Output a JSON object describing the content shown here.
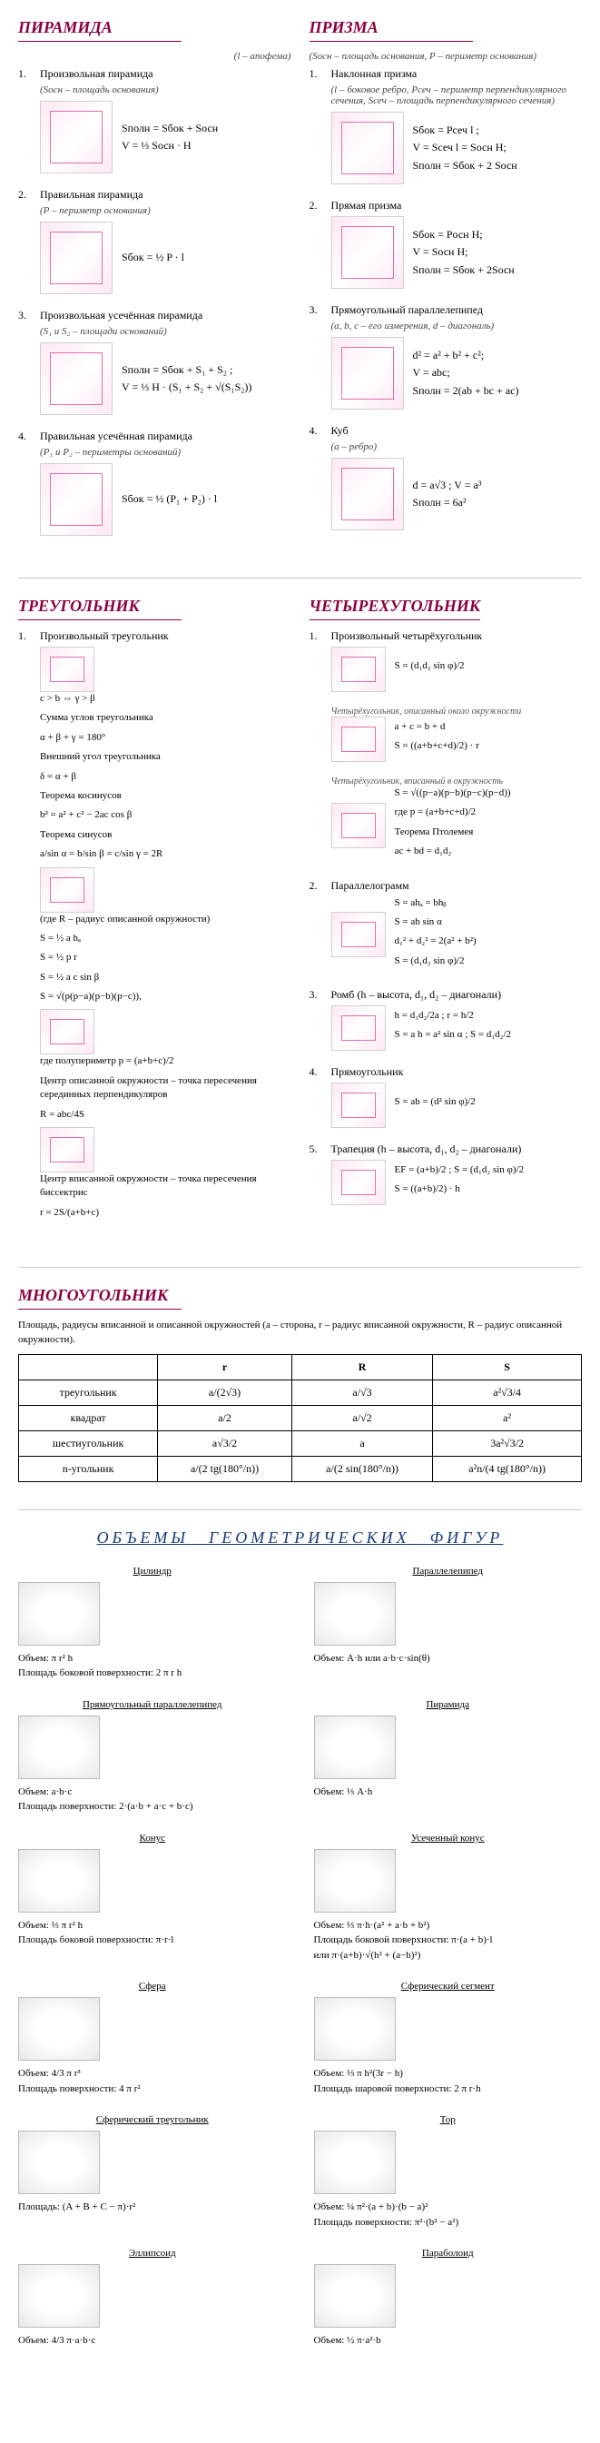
{
  "colors": {
    "accent": "#8b0040",
    "figure_stroke": "#d63384",
    "vol_title": "#1a3a7a",
    "text": "#000000",
    "note": "#444444",
    "bg": "#ffffff"
  },
  "typography": {
    "base_family": "Times New Roman, serif",
    "base_size_pt": 12,
    "title_size_pt": 18,
    "note_size_pt": 11
  },
  "sections": {
    "pyramid": {
      "title": "ПИРАМИДА",
      "apothem_note": "(l – апофема)",
      "items": [
        {
          "num": "1.",
          "title": "Произвольная пирамида",
          "note": "(Sосн – площадь основания)",
          "formulas": [
            "Sполн = Sбок + Sосн",
            "V = ⅓ Sосн · H"
          ]
        },
        {
          "num": "2.",
          "title": "Правильная пирамида",
          "note": "(P – периметр основания)",
          "formulas": [
            "Sбок = ½ P · l"
          ]
        },
        {
          "num": "3.",
          "title": "Произвольная усечённая пирамида",
          "note": "(S₁ и S₂ – площади оснований)",
          "formulas": [
            "Sполн = Sбок + S₁ + S₂ ;",
            "V = ⅓ H · (S₁ + S₂ + √(S₁S₂))"
          ]
        },
        {
          "num": "4.",
          "title": "Правильная усечённая пирамида",
          "note": "(P₁ и P₂ – периметры оснований)",
          "formulas": [
            "Sбок = ½ (P₁ + P₂) · l"
          ]
        }
      ]
    },
    "prism": {
      "title": "ПРИЗМА",
      "note": "(Sосн – площадь основания, P – периметр основания)",
      "items": [
        {
          "num": "1.",
          "title": "Наклонная призма",
          "note": "(l – боковое ребро, Pсеч – периметр перпендикулярного сечения, Sсеч – площадь перпендикулярного сечения)",
          "formulas": [
            "Sбок = Pсеч l ;",
            "V = Sсеч l = Sосн H;",
            "Sполн = Sбок + 2 Sосн"
          ]
        },
        {
          "num": "2.",
          "title": "Прямая призма",
          "note": "",
          "formulas": [
            "Sбок = Pосн H;",
            "V = Sосн H;",
            "Sполн = Sбок + 2Sосн"
          ]
        },
        {
          "num": "3.",
          "title": "Прямоугольный параллелепипед",
          "note": "(a, b, c – его измерения, d – диагональ)",
          "formulas": [
            "d² = a² + b² + c²;",
            "V = abc;",
            "Sполн = 2(ab + bc + ac)"
          ]
        },
        {
          "num": "4.",
          "title": "Куб",
          "note": "(a – ребро)",
          "formulas": [
            "d = a√3 ;  V = a³",
            "Sполн = 6a²"
          ]
        }
      ]
    },
    "triangle": {
      "title": "ТРЕУГОЛЬНИК",
      "items": [
        {
          "num": "1.",
          "title": "Произвольный треугольник",
          "lines": [
            "c > b ⇔ γ > β",
            "Сумма углов треугольника",
            "α + β + γ = 180°",
            "Внешний угол треугольника",
            "δ = α + β",
            "Теорема косинусов",
            "b² = a² + c² − 2ac cos β",
            "Теорема синусов",
            "a/sin α = b/sin β = c/sin γ = 2R",
            "(где R – радиус описанной окружности)",
            "S = ½ a hₐ",
            "S = ½ p r",
            "S = ½ a c sin β",
            "S = √(p(p−a)(p−b)(p−c)),",
            "где полупериметр p = (a+b+c)/2",
            "Центр описанной окружности – точка пересечения серединных перпендикуляров",
            "R = abc/4S",
            "Центр вписанной окружности – точка пересечения биссектрис",
            "r = 2S/(a+b+c)"
          ]
        }
      ]
    },
    "quad": {
      "title": "ЧЕТЫРЕХУГОЛЬНИК",
      "items": [
        {
          "num": "1.",
          "title": "Произвольный четырёхугольник",
          "lines": [
            "S = (d₁d₂ sin φ)/2"
          ]
        },
        {
          "title2": "Четырёхугольник, описанный около окружности",
          "lines": [
            "a + c = b + d",
            "S = ((a+b+c+d)/2) · r"
          ]
        },
        {
          "title2": "Четырёхугольник, вписанный в окружность",
          "lines": [
            "S = √((p−a)(p−b)(p−c)(p−d))",
            "где p = (a+b+c+d)/2",
            "Теорема Птолемея",
            "ac + bd = d₁d₂"
          ]
        },
        {
          "num": "2.",
          "title": "Параллелограмм",
          "lines": [
            "S = ahₐ = bhᵦ",
            "S = ab sin α",
            "d₁² + d₂² = 2(a² + b²)",
            "S = (d₁d₂ sin φ)/2"
          ]
        },
        {
          "num": "3.",
          "title": "Ромб (h – высота, d₁, d₂ – диагонали)",
          "lines": [
            "h = d₁d₂/2a ;  r = h/2",
            "S = a h = a² sin α ;  S = d₁d₂/2"
          ]
        },
        {
          "num": "4.",
          "title": "Прямоугольник",
          "lines": [
            "S = ab = (d² sin φ)/2"
          ]
        },
        {
          "num": "5.",
          "title": "Трапеция (h – высота, d₁, d₂ – диагонали)",
          "lines": [
            "EF = (a+b)/2 ;  S = (d₁d₂ sin φ)/2",
            "S = ((a+b)/2) · h"
          ]
        }
      ]
    },
    "polygon": {
      "title": "МНОГОУГОЛЬНИК",
      "intro": "Площадь, радиусы вписанной и описанной окружностей (a – сторона, r – радиус вписанной окружности, R – радиус описанной окружности).",
      "header": [
        "",
        "r",
        "R",
        "S"
      ],
      "rows": [
        [
          "треугольник",
          "a/(2√3)",
          "a/√3",
          "a²√3/4"
        ],
        [
          "квадрат",
          "a/2",
          "a/√2",
          "a²"
        ],
        [
          "шестиугольник",
          "a√3/2",
          "a",
          "3a²√3/2"
        ],
        [
          "n-угольник",
          "a/(2 tg(180°/n))",
          "a/(2 sin(180°/n))",
          "a²n/(4 tg(180°/n))"
        ]
      ]
    },
    "volumes": {
      "title": "ОБЪЕМЫ ГЕОМЕТРИЧЕСКИХ ФИГУР",
      "items": [
        {
          "title": "Цилиндр",
          "lines": [
            "Объем:  π r² h",
            "Площадь боковой поверхности:  2 π r h"
          ]
        },
        {
          "title": "Параллелепипед",
          "lines": [
            "Объем:  A·h  или  a·b·c·sin(θ)"
          ]
        },
        {
          "title": "Прямоугольный параллелепипед",
          "lines": [
            "Объем:  a·b·c",
            "Площадь поверхности:  2·(a·b + a·c + b·c)"
          ]
        },
        {
          "title": "Пирамида",
          "lines": [
            "Объем:  ⅓ A·h"
          ]
        },
        {
          "title": "Конус",
          "lines": [
            "Объем:  ⅓ π r² h",
            "Площадь боковой поверхности:  π·r·l"
          ]
        },
        {
          "title": "Усеченный конус",
          "lines": [
            "Объем:  ⅓ π·h·(a² + a·b + b²)",
            "Площадь боковой поверхности:  π·(a + b)·l",
            "или  π·(a+b)·√(h² + (a−b)²)"
          ]
        },
        {
          "title": "Сфера",
          "lines": [
            "Объем:  4/3 π r³",
            "Площадь поверхности:  4 π r²"
          ]
        },
        {
          "title": "Сферический сегмент",
          "lines": [
            "Объем:  ⅓ π h²(3r − h)",
            "Площадь шаровой поверхности:  2 π r·h"
          ]
        },
        {
          "title": "Сферический треугольник",
          "lines": [
            "Площадь:  (A + B + C − π)·r²"
          ]
        },
        {
          "title": "Тор",
          "lines": [
            "Объем:  ¼ π²·(a + b)·(b − a)²",
            "Площадь поверхности:  π²·(b² − a²)"
          ]
        },
        {
          "title": "Эллипсоид",
          "lines": [
            "Объем:  4/3 π·a·b·c"
          ]
        },
        {
          "title": "Параболоид",
          "lines": [
            "Объем:  ½ π·a²·b"
          ]
        }
      ]
    }
  }
}
